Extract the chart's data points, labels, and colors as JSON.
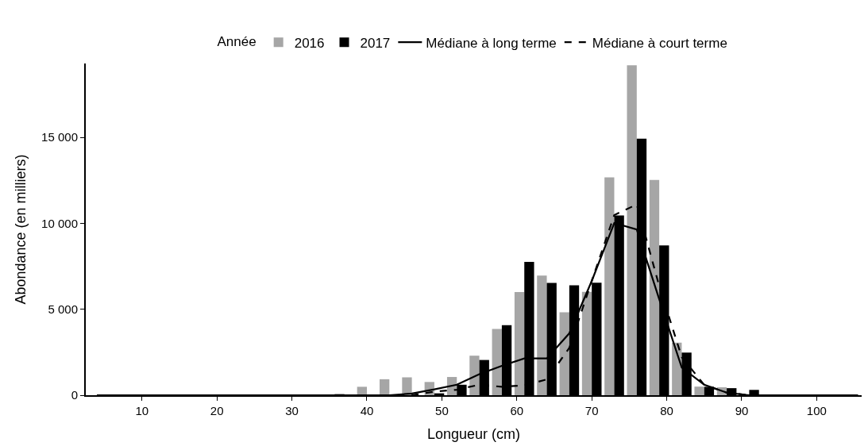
{
  "chart_data": {
    "type": "bar",
    "xlabel": "Longueur (cm)",
    "ylabel": "Abondance (en milliers)",
    "legend_title": "Année",
    "x": [
      37,
      40,
      43,
      46,
      49,
      52,
      55,
      58,
      61,
      64,
      67,
      70,
      73,
      76,
      79,
      82,
      85,
      88,
      91
    ],
    "series": [
      {
        "name": "2016",
        "color": "#a6a6a6",
        "values": [
          60,
          490,
          930,
          1040,
          770,
          1060,
          2300,
          3850,
          6000,
          6960,
          4820,
          6010,
          12670,
          19200,
          12520,
          3060,
          500,
          460,
          null
        ]
      },
      {
        "name": "2017",
        "color": "#000000",
        "values": [
          0,
          0,
          20,
          0,
          110,
          610,
          2050,
          4080,
          7760,
          6530,
          6400,
          6550,
          10460,
          14920,
          8720,
          2480,
          490,
          410,
          310
        ]
      },
      {
        "name": "Médiane à long terme",
        "type": "line",
        "color": "#000000",
        "line_style": "solid",
        "x": [
          4,
          40,
          43,
          46,
          49,
          52,
          55,
          58,
          61,
          64,
          67,
          70,
          73,
          76,
          79,
          82,
          85,
          88,
          91,
          94,
          105.5
        ],
        "values": [
          0,
          0,
          0,
          100,
          340,
          610,
          1220,
          1710,
          2140,
          2140,
          3600,
          6650,
          10020,
          9640,
          5580,
          1610,
          610,
          150,
          0,
          0,
          0
        ]
      },
      {
        "name": "Médiane à court terme",
        "type": "line",
        "color": "#000000",
        "line_style": "dashed",
        "x": [
          4,
          43,
          46,
          49,
          52,
          55,
          58,
          61,
          64,
          67,
          70,
          73,
          76,
          79,
          82,
          85,
          88,
          91,
          94,
          105.5
        ],
        "values": [
          0,
          0,
          0,
          210,
          320,
          610,
          490,
          570,
          920,
          2750,
          6650,
          10480,
          11100,
          6350,
          2220,
          600,
          150,
          0,
          0,
          0
        ]
      }
    ],
    "xlim": [
      2.5,
      106
    ],
    "xticks": [
      10,
      20,
      30,
      40,
      50,
      60,
      70,
      80,
      90,
      100
    ],
    "ylim": [
      0,
      19300
    ],
    "yticks": [
      0,
      {
        "value": 5000,
        "label": "5 000"
      },
      {
        "value": 10000,
        "label": "10 000"
      },
      {
        "value": 15000,
        "label": "15 000"
      }
    ],
    "legend": "top"
  }
}
